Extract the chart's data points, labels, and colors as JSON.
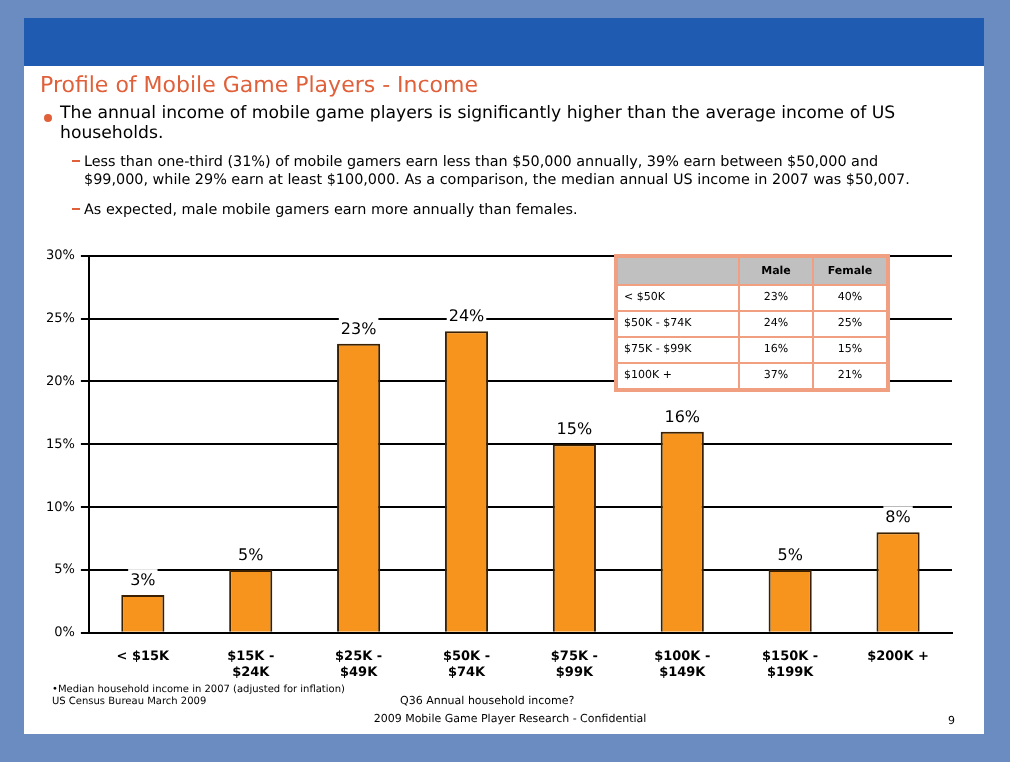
{
  "chart_data": [
    {
      "type": "bar",
      "title": "Profile of Mobile Game Players - Income",
      "xlabel": "Q36 Annual household income?",
      "annotations": [
        "The annual income of mobile game players is significantly higher than the average income of US households.",
        "Less than one-third (31%) of mobile gamers earn less than $50,000 annually, 39% earn between $50,000 and $99,000, while 29% earn at least $100,000.  As a comparison, the median annual US income in 2007 was $50,007.",
        "As expected, male mobile gamers earn more annually than females.",
        "•Median household income in 2007 (adjusted for inflation) US Census Bureau March 2009",
        "2009 Mobile Game Player Research - Confidential",
        "9"
      ],
      "categories": [
        "< $15K",
        "$15K - $24K",
        "$25K - $49K",
        "$50K - $74K",
        "$75K - $99K",
        "$100K - $149K",
        "$150K - $199K",
        "$200K +"
      ],
      "values": [
        3,
        5,
        23,
        24,
        15,
        16,
        5,
        8
      ],
      "value_labels": [
        "3%",
        "5%",
        "23%",
        "24%",
        "15%",
        "16%",
        "5%",
        "8%"
      ],
      "color": "#f7941d",
      "ylim": [
        0,
        30
      ],
      "yticks": [
        {
          "value": 0,
          "label": "0%"
        },
        {
          "value": 5,
          "label": "5%"
        },
        {
          "value": 10,
          "label": "10%"
        },
        {
          "value": 15,
          "label": "15%"
        },
        {
          "value": 20,
          "label": "20%"
        },
        {
          "value": 25,
          "label": "25%"
        },
        {
          "value": 30,
          "label": "30%"
        }
      ],
      "grid": "y",
      "legend": false
    },
    {
      "type": "other",
      "categories": [
        "< $50K",
        "$50K - $74K",
        "$75K - $99K",
        "$100K +"
      ],
      "series": [
        {
          "name": "Male",
          "values": [
            23,
            24,
            16,
            37
          ],
          "value_labels": [
            "23%",
            "24%",
            "16%",
            "37%"
          ]
        },
        {
          "name": "Female",
          "values": [
            40,
            25,
            15,
            21
          ],
          "value_labels": [
            "40%",
            "25%",
            "15%",
            "21%"
          ]
        }
      ]
    }
  ]
}
